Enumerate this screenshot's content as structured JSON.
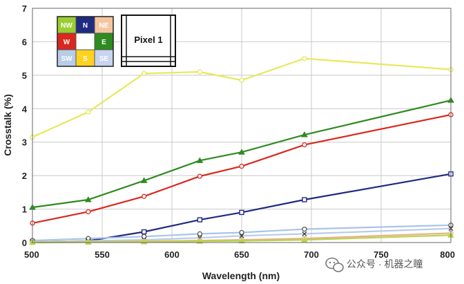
{
  "chart_data": {
    "type": "line",
    "xlabel": "Wavelength (nm)",
    "ylabel": "Crosstalk (%)",
    "xlim": [
      500,
      800
    ],
    "ylim": [
      0,
      7
    ],
    "xticks": [
      500,
      550,
      600,
      650,
      700,
      750,
      800
    ],
    "yticks": [
      0,
      1,
      2,
      3,
      4,
      5,
      6,
      7
    ],
    "grid": true,
    "x": [
      500,
      540,
      580,
      620,
      650,
      695,
      800
    ],
    "series": [
      {
        "name": "S",
        "color": "#e8e85a",
        "marker": "circle",
        "values": [
          3.15,
          3.9,
          5.05,
          5.1,
          4.85,
          5.5,
          5.17
        ]
      },
      {
        "name": "E",
        "color": "#2e8b1e",
        "marker": "triangle",
        "values": [
          1.05,
          1.28,
          1.85,
          2.45,
          2.7,
          3.22,
          4.25
        ]
      },
      {
        "name": "W",
        "color": "#d9281e",
        "marker": "circle",
        "values": [
          0.58,
          0.92,
          1.38,
          1.98,
          2.28,
          2.92,
          3.82
        ]
      },
      {
        "name": "N",
        "color": "#1f2a80",
        "marker": "square",
        "values": [
          0.02,
          0.05,
          0.32,
          0.68,
          0.9,
          1.28,
          2.05
        ]
      },
      {
        "name": "SE",
        "color": "#a8c4e8",
        "marker": "circle",
        "values": [
          0.06,
          0.12,
          0.18,
          0.26,
          0.3,
          0.4,
          0.52
        ]
      },
      {
        "name": "SW",
        "color": "#b8cce8",
        "marker": "x",
        "values": [
          0.02,
          0.05,
          0.08,
          0.14,
          0.2,
          0.26,
          0.42
        ]
      },
      {
        "name": "NE",
        "color": "#e8b08a",
        "marker": "circle",
        "values": [
          0.01,
          0.02,
          0.04,
          0.06,
          0.08,
          0.12,
          0.28
        ]
      },
      {
        "name": "NW",
        "color": "#b8d44a",
        "marker": "triangle",
        "values": [
          0.0,
          0.01,
          0.02,
          0.04,
          0.05,
          0.08,
          0.22
        ]
      }
    ],
    "legend": {
      "position": "top-left",
      "cells": [
        {
          "label": "NW",
          "bg": "#9acd32",
          "fg": "#ffffff"
        },
        {
          "label": "N",
          "bg": "#1f2a80",
          "fg": "#ffffff"
        },
        {
          "label": "NE",
          "bg": "#f4c6a0",
          "fg": "#ffffff"
        },
        {
          "label": "W",
          "bg": "#d9281e",
          "fg": "#ffffff"
        },
        {
          "label": "",
          "bg": "#ffffff",
          "fg": "#ffffff"
        },
        {
          "label": "E",
          "bg": "#2e8b1e",
          "fg": "#ffffff"
        },
        {
          "label": "SW",
          "bg": "#b8cce8",
          "fg": "#ffffff"
        },
        {
          "label": "S",
          "bg": "#ffd21f",
          "fg": "#ffffff"
        },
        {
          "label": "SE",
          "bg": "#c8d4f0",
          "fg": "#ffffff"
        }
      ]
    },
    "inset_label": "Pixel 1"
  },
  "watermark": {
    "text": "公众号 · 机器之瞳",
    "icon": "wechat-icon"
  }
}
